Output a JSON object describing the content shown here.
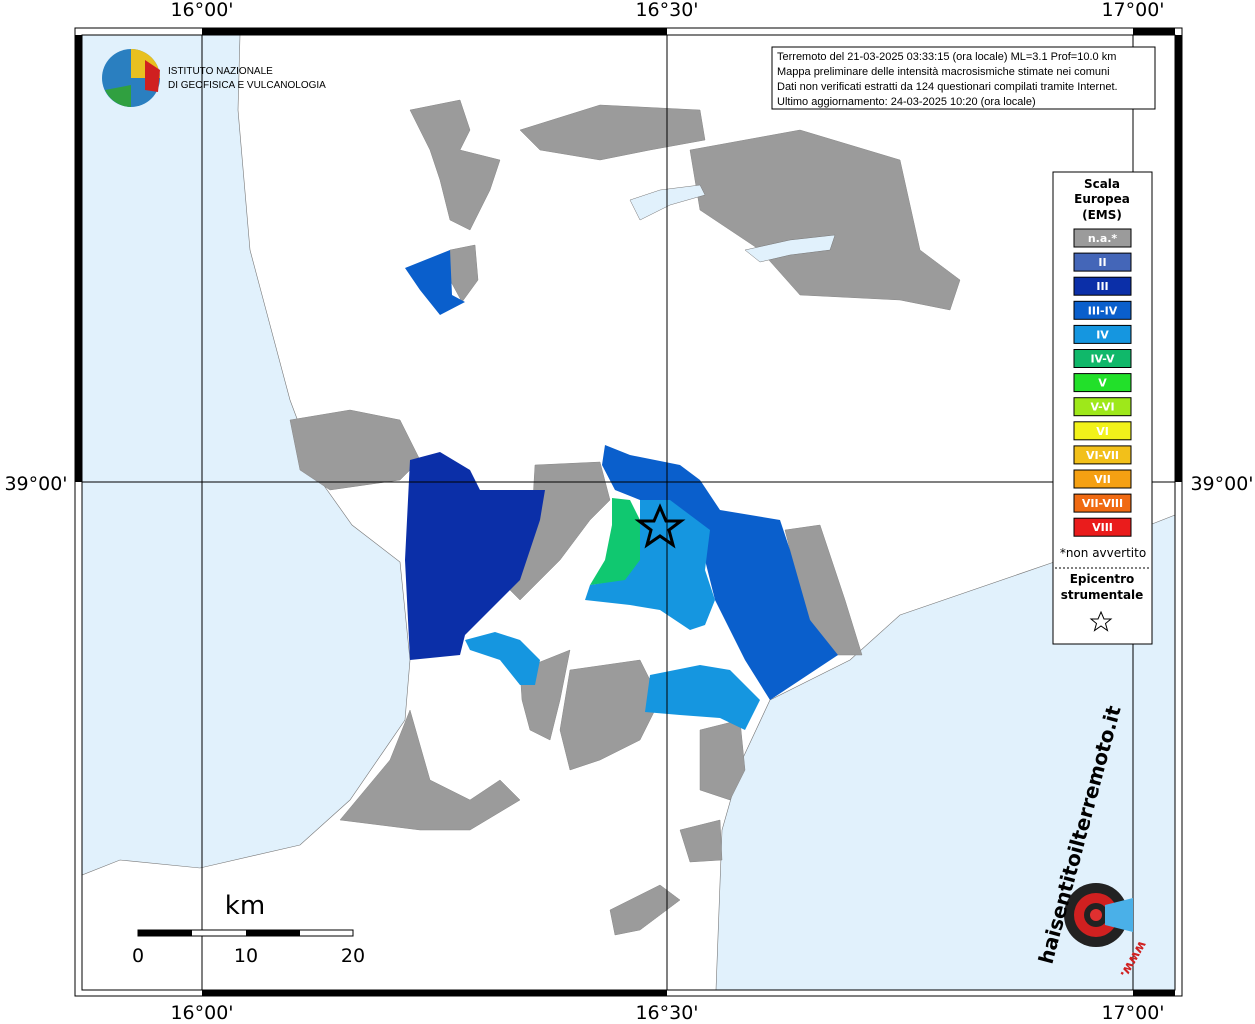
{
  "map": {
    "grid_labels": {
      "top": [
        "16°00'",
        "16°30'",
        "17°00'"
      ],
      "bottom": [
        "16°00'",
        "16°30'",
        "17°00'"
      ],
      "left": [
        "39°00'"
      ],
      "right": [
        "39°00'"
      ]
    },
    "info": [
      "Terremoto del 21-03-2025 03:33:15 (ora locale) ML=3.1 Prof=10.0 km",
      "Mappa preliminare delle intensità macrosismiche stimate nei comuni",
      "Dati non verificati estratti da 124 questionari compilati tramite Internet.",
      "Ultimo aggiornamento: 24-03-2025 10:20 (ora locale)"
    ],
    "logo": [
      "ISTITUTO NAZIONALE",
      "DI GEOFISICA E VULCANOLOGIA"
    ],
    "legend": {
      "title": [
        "Scala",
        "Europea",
        "(EMS)"
      ],
      "items": [
        {
          "label": "n.a.*",
          "color": "#9b9b9b"
        },
        {
          "label": "II",
          "color": "#4466b8"
        },
        {
          "label": "III",
          "color": "#0b2fa8"
        },
        {
          "label": "III-IV",
          "color": "#0a5fcc"
        },
        {
          "label": "IV",
          "color": "#1596e0"
        },
        {
          "label": "IV-V",
          "color": "#10b86a"
        },
        {
          "label": "V",
          "color": "#22e02a"
        },
        {
          "label": "V-VI",
          "color": "#9ee81a"
        },
        {
          "label": "VI",
          "color": "#f2f21a"
        },
        {
          "label": "VI-VII",
          "color": "#f2c01a"
        },
        {
          "label": "VII",
          "color": "#f5a012"
        },
        {
          "label": "VII-VIII",
          "color": "#f06a12"
        },
        {
          "label": "VIII",
          "color": "#ea1c1c"
        }
      ],
      "note": "*non avvertito",
      "epicenter": [
        "Epicentro",
        "strumentale"
      ]
    },
    "scale": {
      "unit": "km",
      "labels": [
        "0",
        "10",
        "20"
      ]
    },
    "badge": {
      "text": "haisentitoilterremoto.it",
      "www": "www."
    }
  }
}
